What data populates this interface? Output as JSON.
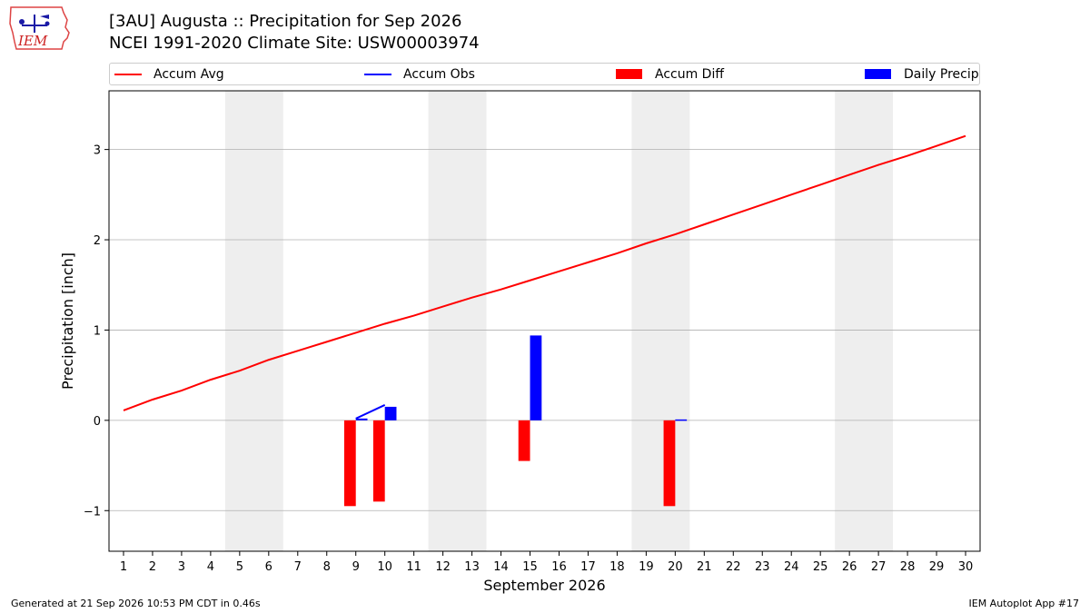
{
  "header": {
    "title_line1": "[3AU] Augusta :: Precipitation for Sep 2026",
    "title_line2": "NCEI 1991-2020 Climate Site: USW00003974",
    "logo_text": "IEM"
  },
  "footer": {
    "left": "Generated at 21 Sep 2026 10:53 PM CDT in 0.46s",
    "right": "IEM Autoplot App #17"
  },
  "chart_data": {
    "type": "bar",
    "xlabel": "September 2026",
    "ylabel": "Precipitation [inch]",
    "xlim": [
      0.5,
      30.5
    ],
    "ylim": [
      -1.45,
      3.65
    ],
    "yticks": [
      -1,
      0,
      1,
      2,
      3
    ],
    "ytick_labels": [
      "−1",
      "0",
      "1",
      "2",
      "3"
    ],
    "x": [
      1,
      2,
      3,
      4,
      5,
      6,
      7,
      8,
      9,
      10,
      11,
      12,
      13,
      14,
      15,
      16,
      17,
      18,
      19,
      20,
      21,
      22,
      23,
      24,
      25,
      26,
      27,
      28,
      29,
      30
    ],
    "grid": "horizontal",
    "legend_position": "top",
    "weekend_shading": [
      [
        4.5,
        6.5
      ],
      [
        11.5,
        13.5
      ],
      [
        18.5,
        20.5
      ],
      [
        25.5,
        27.5
      ]
    ],
    "colors": {
      "accum_avg": "#ff0000",
      "accum_obs": "#0000ff",
      "accum_diff": "#ff0000",
      "daily_precip": "#0000ff",
      "weekend": "#eeeeee",
      "grid": "#b0b0b0"
    },
    "series": [
      {
        "name": "Accum Avg",
        "kind": "line",
        "values": [
          0.11,
          0.23,
          0.33,
          0.45,
          0.55,
          0.67,
          0.77,
          0.87,
          0.97,
          1.07,
          1.16,
          1.26,
          1.36,
          1.45,
          1.55,
          1.65,
          1.75,
          1.85,
          1.96,
          2.06,
          2.17,
          2.28,
          2.39,
          2.5,
          2.61,
          2.72,
          2.83,
          2.93,
          3.04,
          3.15
        ]
      },
      {
        "name": "Accum Obs",
        "kind": "line",
        "x": [
          9,
          10
        ],
        "values": [
          0.02,
          0.17
        ]
      },
      {
        "name": "Accum Diff",
        "kind": "bar",
        "x": [
          9,
          10,
          15,
          20
        ],
        "values": [
          -0.95,
          -0.9,
          -0.45,
          -0.95
        ]
      },
      {
        "name": "Daily Precip",
        "kind": "bar",
        "x": [
          9,
          10,
          15,
          20
        ],
        "values": [
          0.02,
          0.15,
          0.94,
          0.01
        ]
      }
    ]
  }
}
